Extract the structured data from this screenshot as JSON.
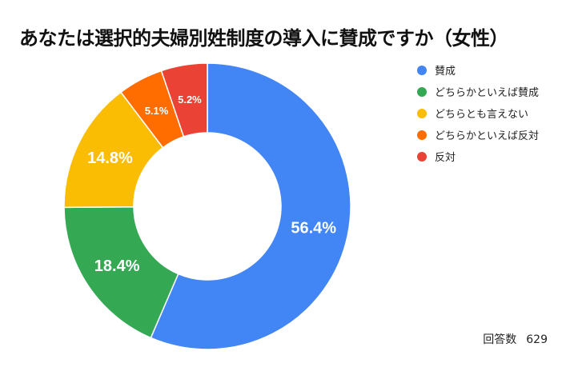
{
  "title": "あなたは選択的夫婦別姓制度の導入に賛成ですか（女性）",
  "responses": {
    "label": "回答数",
    "count": "629"
  },
  "chart_data": {
    "type": "pie",
    "donut": true,
    "title": "あなたは選択的夫婦別姓制度の導入に賛成ですか（女性）",
    "legend_position": "right",
    "series": [
      {
        "name": "賛成",
        "value": 56.4,
        "label": "56.4%",
        "color": "#4285F4"
      },
      {
        "name": "どちらかといえば賛成",
        "value": 18.4,
        "label": "18.4%",
        "color": "#34A853"
      },
      {
        "name": "どちらとも言えない",
        "value": 14.8,
        "label": "14.8%",
        "color": "#FBBC04"
      },
      {
        "name": "どちらかといえば反対",
        "value": 5.1,
        "label": "5.1%",
        "color": "#FF6D01"
      },
      {
        "name": "反対",
        "value": 5.2,
        "label": "5.2%",
        "color": "#EA4335"
      }
    ]
  }
}
